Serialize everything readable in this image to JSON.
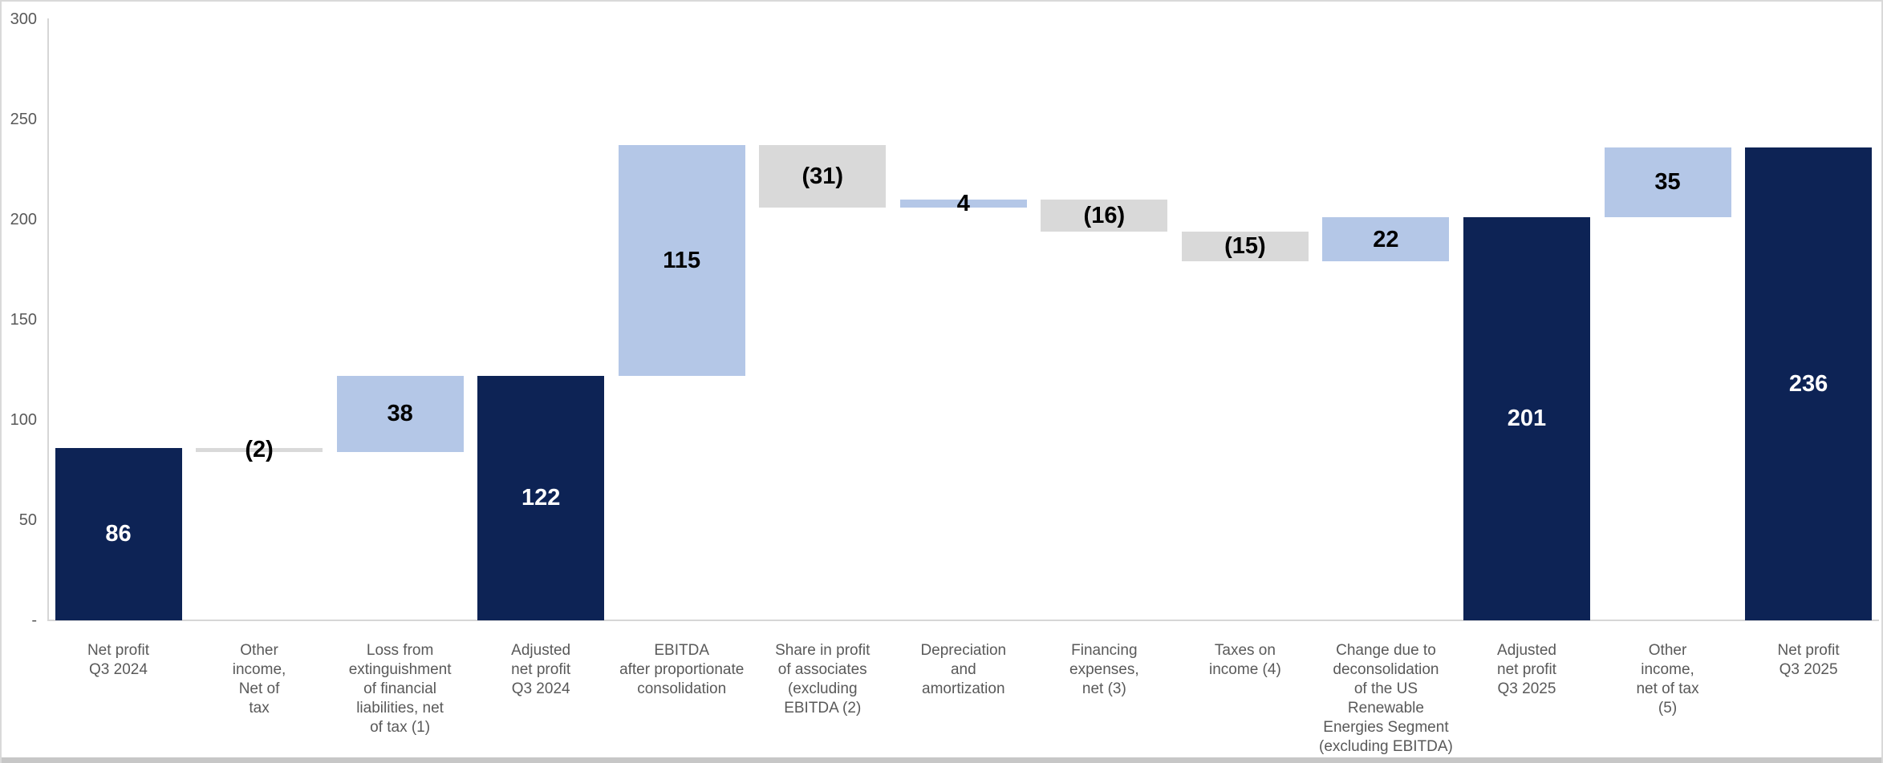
{
  "page": {
    "background": "#ffffff",
    "frame_border_color": "#d9d9d9",
    "bottom_strip_color": "#c7c7c7"
  },
  "chart_data": {
    "type": "bar",
    "subtype": "waterfall",
    "title": "",
    "xlabel": "",
    "ylabel": "",
    "ylim": [
      0,
      300
    ],
    "ytick_interval": 50,
    "grid": false,
    "legend": "none",
    "axis_text_color": "#595959",
    "colors": {
      "total": "#0d2355",
      "increase": "#b4c7e7",
      "decrease": "#d9d9d9",
      "label_on_total": "#ffffff",
      "label_on_delta": "#000000"
    },
    "yticks": [
      {
        "value": 300,
        "label": "300"
      },
      {
        "value": 250,
        "label": "250"
      },
      {
        "value": 200,
        "label": "200"
      },
      {
        "value": 150,
        "label": "150"
      },
      {
        "value": 100,
        "label": "100"
      },
      {
        "value": 50,
        "label": "50"
      },
      {
        "value": 0,
        "label": "-"
      }
    ],
    "bars": [
      {
        "category": "Net profit Q3 2024",
        "category_lines": [
          "Net profit",
          "Q3 2024"
        ],
        "value": 86,
        "label": "86",
        "start": 0,
        "end": 86,
        "role": "total"
      },
      {
        "category": "Other income, Net of tax",
        "category_lines": [
          "Other",
          "income,",
          "Net of",
          "tax"
        ],
        "value": -2,
        "label": "(2)",
        "start": 84,
        "end": 86,
        "role": "decrease"
      },
      {
        "category": "Loss from extinguishment of financial liabilities, net of tax (1)",
        "category_lines": [
          "Loss from",
          "extinguishment",
          "of financial",
          "liabilities, net",
          "of tax (1)"
        ],
        "value": 38,
        "label": "38",
        "start": 84,
        "end": 122,
        "role": "increase"
      },
      {
        "category": "Adjusted net profit Q3 2024",
        "category_lines": [
          "Adjusted",
          "net profit",
          "Q3 2024"
        ],
        "value": 122,
        "label": "122",
        "start": 0,
        "end": 122,
        "role": "total"
      },
      {
        "category": "EBITDA after proportionate consolidation",
        "category_lines": [
          "EBITDA",
          "after proportionate",
          "consolidation"
        ],
        "value": 115,
        "label": "115",
        "start": 122,
        "end": 237,
        "role": "increase"
      },
      {
        "category": "Share in profit of associates (excluding EBITDA (2)",
        "category_lines": [
          "Share in profit",
          "of associates",
          "(excluding",
          "EBITDA (2)"
        ],
        "value": -31,
        "label": "(31)",
        "start": 206,
        "end": 237,
        "role": "decrease"
      },
      {
        "category": "Depreciation and amortization",
        "category_lines": [
          "Depreciation",
          "and",
          "amortization"
        ],
        "value": 4,
        "label": "4",
        "start": 206,
        "end": 210,
        "role": "increase"
      },
      {
        "category": "Financing expenses, net (3)",
        "category_lines": [
          "Financing",
          "expenses,",
          "net (3)"
        ],
        "value": -16,
        "label": "(16)",
        "start": 194,
        "end": 210,
        "role": "decrease"
      },
      {
        "category": "Taxes on income (4)",
        "category_lines": [
          "Taxes on",
          "income (4)"
        ],
        "value": -15,
        "label": "(15)",
        "start": 179,
        "end": 194,
        "role": "decrease"
      },
      {
        "category": "Change due to deconsolidation of the US Renewable Energies Segment (excluding EBITDA)",
        "category_lines": [
          "Change due to",
          "deconsolidation",
          "of the US",
          "Renewable",
          "Energies Segment",
          "(excluding EBITDA)"
        ],
        "value": 22,
        "label": "22",
        "start": 179,
        "end": 201,
        "role": "increase"
      },
      {
        "category": "Adjusted net profit Q3 2025",
        "category_lines": [
          "Adjusted",
          "net profit",
          "Q3 2025"
        ],
        "value": 201,
        "label": "201",
        "start": 0,
        "end": 201,
        "role": "total"
      },
      {
        "category": "Other income, net of tax (5)",
        "category_lines": [
          "Other",
          "income,",
          "net of tax",
          "(5)"
        ],
        "value": 35,
        "label": "35",
        "start": 201,
        "end": 236,
        "role": "increase"
      },
      {
        "category": "Net profit Q3 2025",
        "category_lines": [
          "Net profit",
          "Q3 2025"
        ],
        "value": 236,
        "label": "236",
        "start": 0,
        "end": 236,
        "role": "total"
      }
    ]
  }
}
